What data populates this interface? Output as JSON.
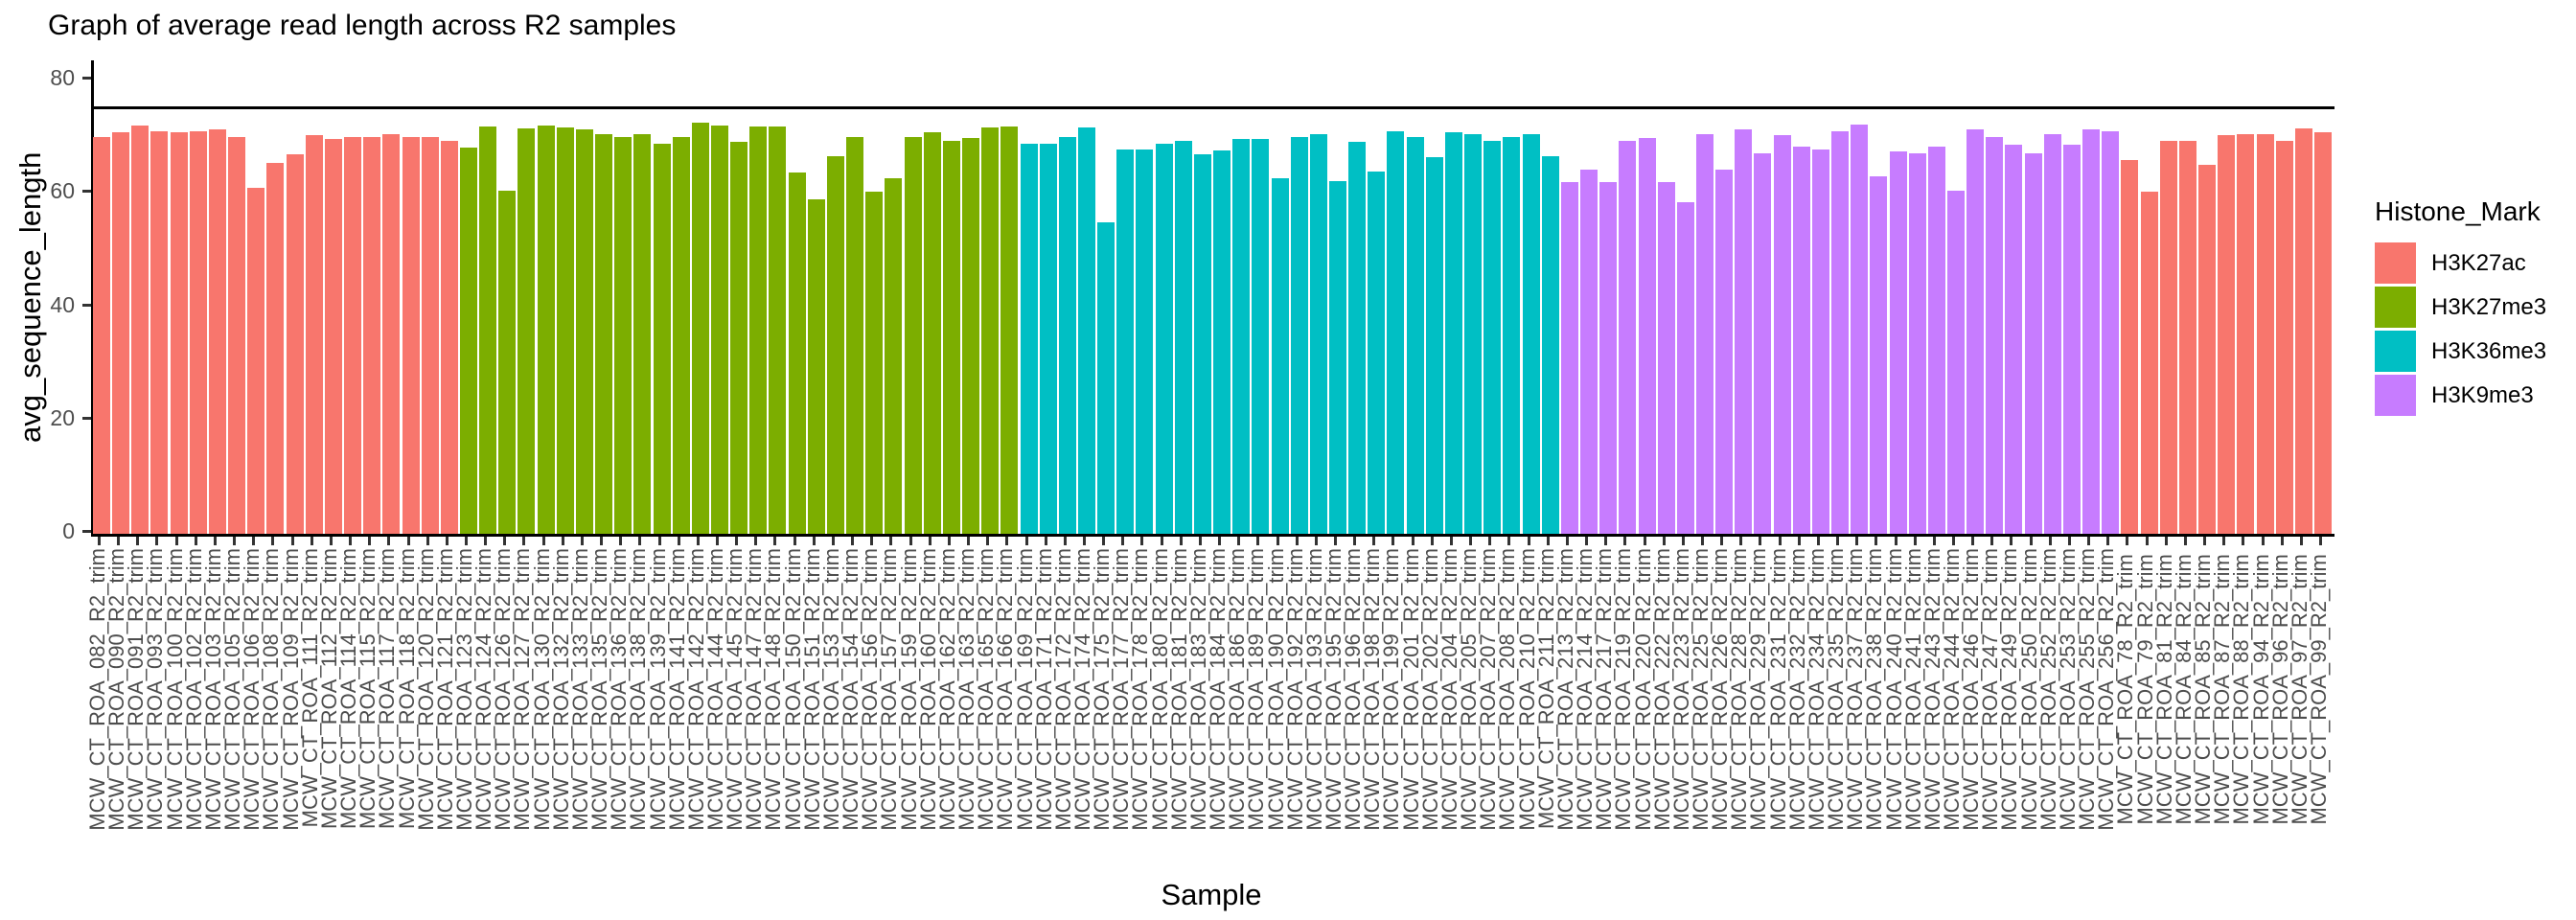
{
  "title": "Graph of average read length across R2 samples",
  "axes": {
    "x_title": "Sample",
    "y_title": "avg_sequence_length"
  },
  "legend": {
    "title": "Histone_Mark",
    "items": [
      {
        "label": "H3K27ac",
        "color": "#F8766D"
      },
      {
        "label": "H3K27me3",
        "color": "#7CAE00"
      },
      {
        "label": "H3K36me3",
        "color": "#00BFC4"
      },
      {
        "label": "H3K9me3",
        "color": "#C77CFF"
      }
    ]
  },
  "chart_data": {
    "type": "bar",
    "title": "Graph of average read length across R2 samples",
    "xlabel": "Sample",
    "ylabel": "avg_sequence_length",
    "ylim": [
      0,
      80
    ],
    "yticks": [
      0,
      20,
      40,
      60,
      80
    ],
    "reference_line_y": 75,
    "grid": false,
    "legend_position": "right",
    "legend_title": "Histone_Mark",
    "palette": {
      "H3K27ac": "#F8766D",
      "H3K27me3": "#7CAE00",
      "H3K36me3": "#00BFC4",
      "H3K9me3": "#C77CFF"
    },
    "series": [
      {
        "name": "H3K27ac",
        "labels": [
          "MCW_CT_ROA_082_R2_trim",
          "MCW_CT_ROA_090_R2_trim",
          "MCW_CT_ROA_091_R2_trim",
          "MCW_CT_ROA_093_R2_trim",
          "MCW_CT_ROA_100_R2_trim",
          "MCW_CT_ROA_102_R2_trim",
          "MCW_CT_ROA_103_R2_trim",
          "MCW_CT_ROA_105_R2_trim",
          "MCW_CT_ROA_106_R2_trim",
          "MCW_CT_ROA_108_R2_trim",
          "MCW_CT_ROA_109_R2_trim",
          "MCW_CT_ROA_111_R2_trim",
          "MCW_CT_ROA_112_R2_trim",
          "MCW_CT_ROA_114_R2_trim",
          "MCW_CT_ROA_115_R2_trim",
          "MCW_CT_ROA_117_R2_trim",
          "MCW_CT_ROA_118_R2_trim",
          "MCW_CT_ROA_120_R2_trim",
          "MCW_CT_ROA_121_R2_trim"
        ],
        "values": [
          70.0,
          70.8,
          72.0,
          71.0,
          70.8,
          71.1,
          71.3,
          70.1,
          61.1,
          65.5,
          66.9,
          70.3,
          69.6,
          70.0,
          70.0,
          70.5,
          70.0,
          70.1,
          69.3
        ]
      },
      {
        "name": "H3K27me3",
        "labels": [
          "MCW_CT_ROA_123_R2_trim",
          "MCW_CT_ROA_124_R2_trim",
          "MCW_CT_ROA_126_R2_trim",
          "MCW_CT_ROA_127_R2_trim",
          "MCW_CT_ROA_130_R2_trim",
          "MCW_CT_ROA_132_R2_trim",
          "MCW_CT_ROA_133_R2_trim",
          "MCW_CT_ROA_135_R2_trim",
          "MCW_CT_ROA_136_R2_trim",
          "MCW_CT_ROA_138_R2_trim",
          "MCW_CT_ROA_139_R2_trim",
          "MCW_CT_ROA_141_R2_trim",
          "MCW_CT_ROA_142_R2_trim",
          "MCW_CT_ROA_144_R2_trim",
          "MCW_CT_ROA_145_R2_trim",
          "MCW_CT_ROA_147_R2_trim",
          "MCW_CT_ROA_148_R2_trim",
          "MCW_CT_ROA_150_R2_trim",
          "MCW_CT_ROA_151_R2_trim",
          "MCW_CT_ROA_153_R2_trim",
          "MCW_CT_ROA_154_R2_trim",
          "MCW_CT_ROA_156_R2_trim",
          "MCW_CT_ROA_157_R2_trim",
          "MCW_CT_ROA_159_R2_trim",
          "MCW_CT_ROA_160_R2_trim",
          "MCW_CT_ROA_162_R2_trim",
          "MCW_CT_ROA_163_R2_trim",
          "MCW_CT_ROA_165_R2_trim",
          "MCW_CT_ROA_166_R2_trim"
        ],
        "values": [
          68.1,
          71.8,
          60.6,
          71.5,
          72.0,
          71.7,
          71.3,
          70.5,
          70.0,
          70.6,
          68.8,
          70.1,
          72.5,
          72.0,
          69.1,
          71.8,
          71.8,
          63.8,
          59.1,
          66.7,
          70.0,
          60.4,
          62.8,
          70.1,
          70.8,
          69.4,
          69.8,
          71.7,
          71.8
        ]
      },
      {
        "name": "H3K36me3",
        "labels": [
          "MCW_CT_ROA_169_R2_trim",
          "MCW_CT_ROA_171_R2_trim",
          "MCW_CT_ROA_172_R2_trim",
          "MCW_CT_ROA_174_R2_trim",
          "MCW_CT_ROA_175_R2_trim",
          "MCW_CT_ROA_177_R2_trim",
          "MCW_CT_ROA_178_R2_trim",
          "MCW_CT_ROA_180_R2_trim",
          "MCW_CT_ROA_181_R2_trim",
          "MCW_CT_ROA_183_R2_trim",
          "MCW_CT_ROA_184_R2_trim",
          "MCW_CT_ROA_186_R2_trim",
          "MCW_CT_ROA_189_R2_trim",
          "MCW_CT_ROA_190_R2_trim",
          "MCW_CT_ROA_192_R2_trim",
          "MCW_CT_ROA_193_R2_trim",
          "MCW_CT_ROA_195_R2_trim",
          "MCW_CT_ROA_196_R2_trim",
          "MCW_CT_ROA_198_R2_trim",
          "MCW_CT_ROA_199_R2_trim",
          "MCW_CT_ROA_201_R2_trim",
          "MCW_CT_ROA_202_R2_trim",
          "MCW_CT_ROA_204_R2_trim",
          "MCW_CT_ROA_205_R2_trim",
          "MCW_CT_ROA_207_R2_trim",
          "MCW_CT_ROA_208_R2_trim",
          "MCW_CT_ROA_210_R2_trim",
          "MCW_CT_ROA_211_R2_trim"
        ],
        "values": [
          68.8,
          68.8,
          70.0,
          71.7,
          55.0,
          67.8,
          67.8,
          68.8,
          69.4,
          66.9,
          67.7,
          69.6,
          69.6,
          62.8,
          70.0,
          70.5,
          62.3,
          69.1,
          64.0,
          71.0,
          70.1,
          66.4,
          70.8,
          70.5,
          69.3,
          70.0,
          70.5,
          66.7
        ]
      },
      {
        "name": "H3K9me3",
        "labels": [
          "MCW_CT_ROA_213_R2_trim",
          "MCW_CT_ROA_214_R2_trim",
          "MCW_CT_ROA_217_R2_trim",
          "MCW_CT_ROA_219_R2_trim",
          "MCW_CT_ROA_220_R2_trim",
          "MCW_CT_ROA_222_R2_trim",
          "MCW_CT_ROA_223_R2_trim",
          "MCW_CT_ROA_225_R2_trim",
          "MCW_CT_ROA_226_R2_trim",
          "MCW_CT_ROA_228_R2_trim",
          "MCW_CT_ROA_229_R2_trim",
          "MCW_CT_ROA_231_R2_trim",
          "MCW_CT_ROA_232_R2_trim",
          "MCW_CT_ROA_234_R2_trim",
          "MCW_CT_ROA_235_R2_trim",
          "MCW_CT_ROA_237_R2_trim",
          "MCW_CT_ROA_238_R2_trim",
          "MCW_CT_ROA_240_R2_trim",
          "MCW_CT_ROA_241_R2_trim",
          "MCW_CT_ROA_243_R2_trim",
          "MCW_CT_ROA_244_R2_trim",
          "MCW_CT_ROA_246_R2_trim",
          "MCW_CT_ROA_247_R2_trim",
          "MCW_CT_ROA_249_R2_trim",
          "MCW_CT_ROA_250_R2_trim",
          "MCW_CT_ROA_252_R2_trim",
          "MCW_CT_ROA_253_R2_trim",
          "MCW_CT_ROA_255_R2_trim",
          "MCW_CT_ROA_256_R2_trim"
        ],
        "values": [
          62.1,
          64.3,
          62.1,
          69.3,
          69.8,
          62.0,
          58.6,
          70.5,
          64.3,
          71.3,
          67.2,
          70.3,
          68.4,
          67.8,
          71.1,
          72.2,
          63.1,
          67.4,
          67.2,
          68.4,
          60.6,
          71.3,
          70.1,
          68.6,
          67.1,
          70.5,
          68.6,
          71.3,
          71.0
        ]
      },
      {
        "name": "H3K27ac",
        "labels": [
          "MCW_CT_ROA_78_R2_trim ",
          "MCW_CT_ROA_79_R2_trim ",
          "MCW_CT_ROA_81_R2_trim ",
          "MCW_CT_ROA_84_R2_trim ",
          "MCW_CT_ROA_85_R2_trim ",
          "MCW_CT_ROA_87_R2_trim ",
          "MCW_CT_ROA_88_R2_trim ",
          "MCW_CT_ROA_94_R2_trim ",
          "MCW_CT_ROA_96_R2_trim ",
          "MCW_CT_ROA_97_R2_trim ",
          "MCW_CT_ROA_99_R2_trim "
        ],
        "values": [
          65.9,
          60.4,
          69.3,
          69.3,
          65.2,
          70.3,
          70.6,
          70.5,
          69.4,
          71.5,
          70.8
        ]
      }
    ]
  }
}
